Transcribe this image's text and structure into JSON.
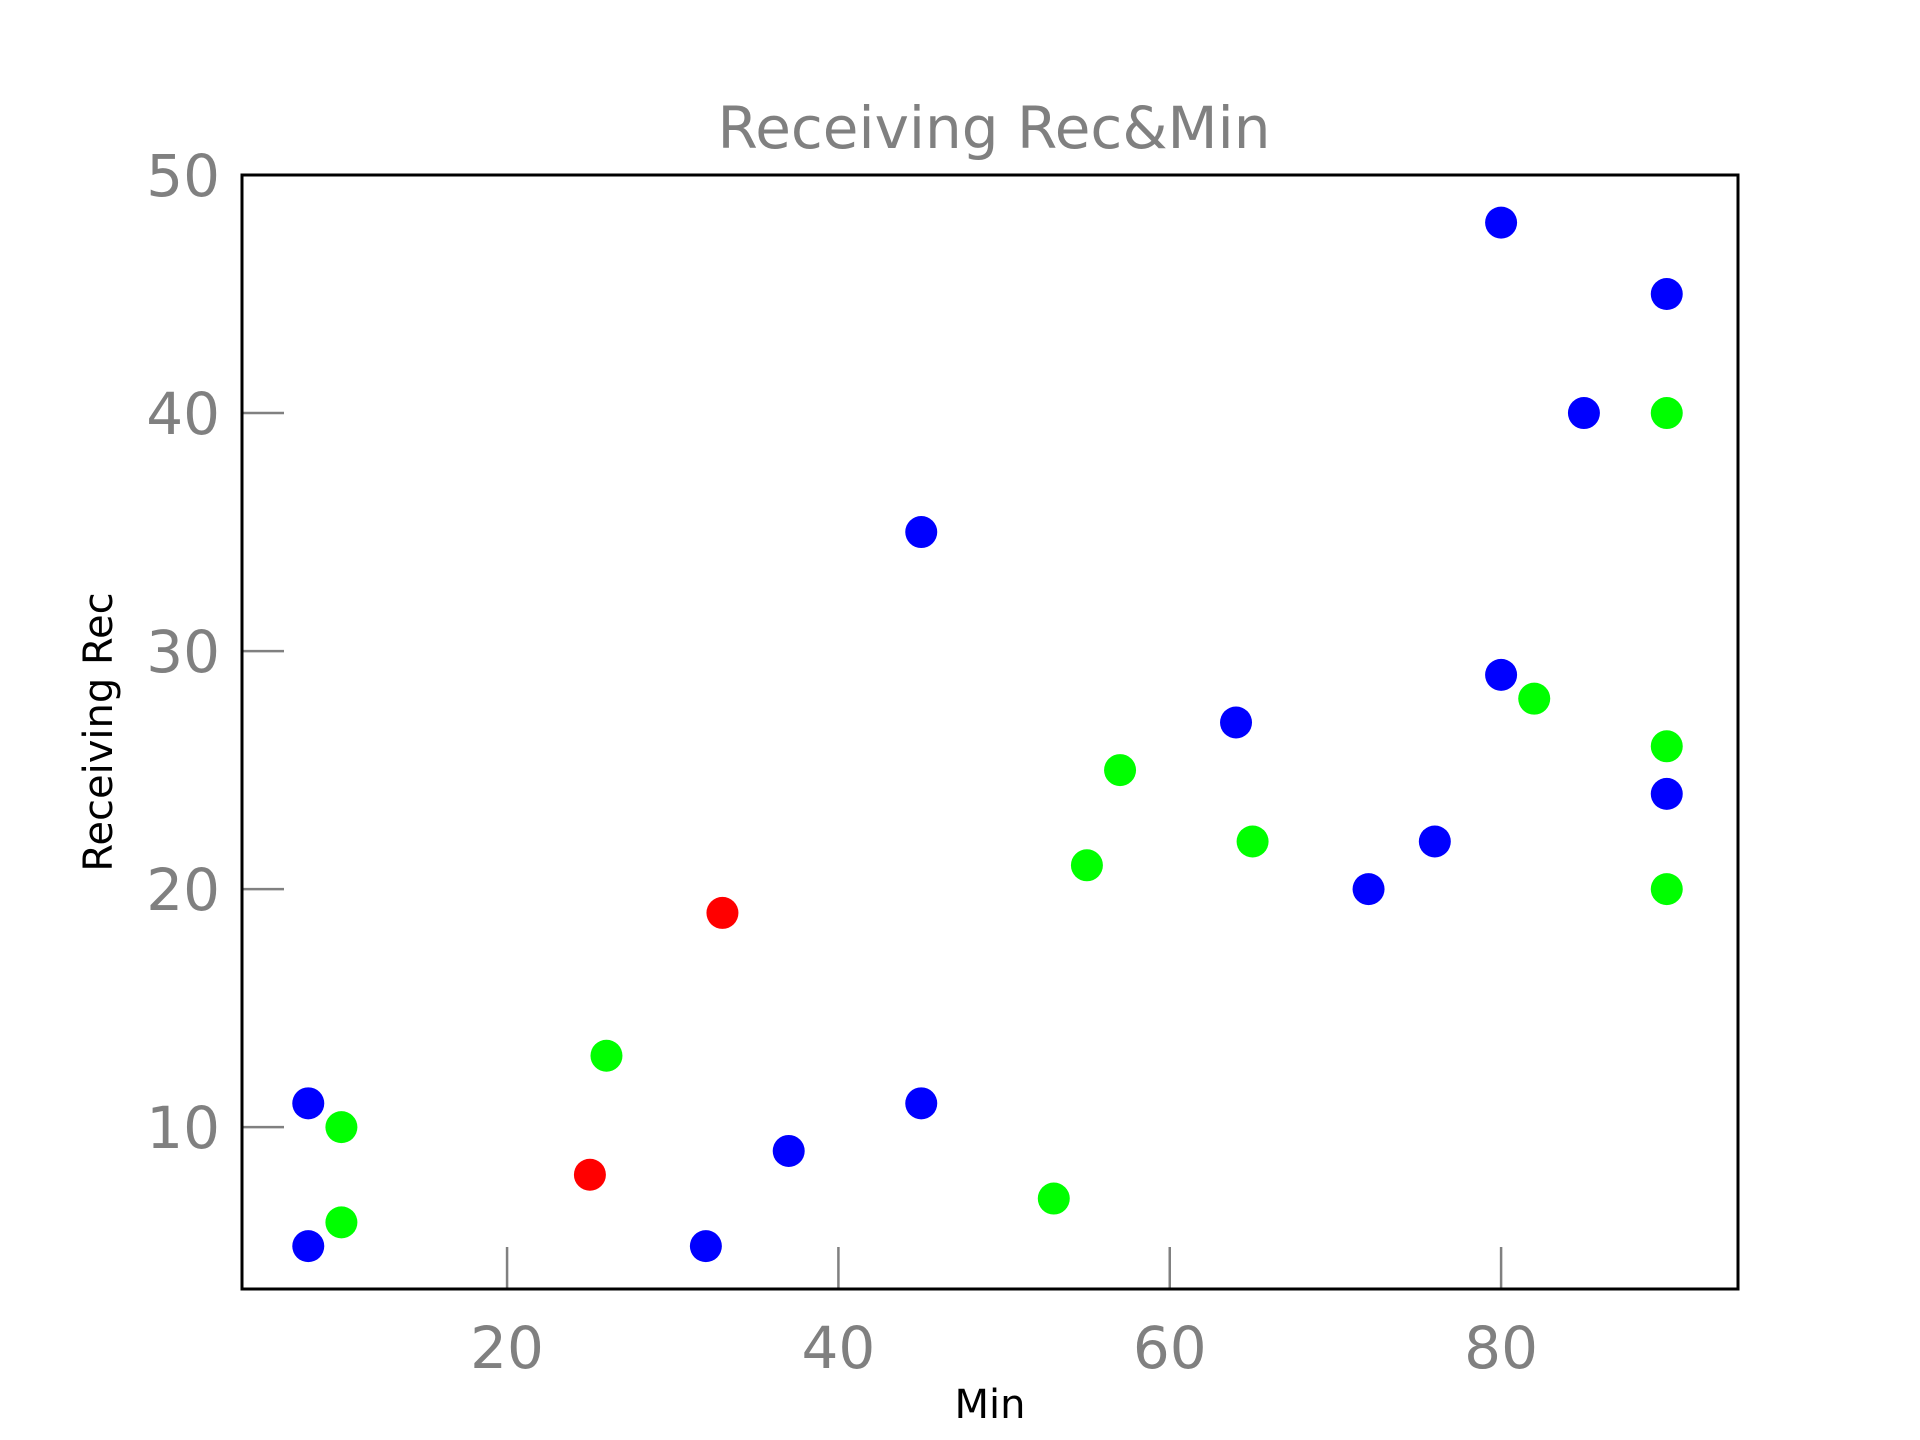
{
  "chart_data": {
    "type": "scatter",
    "title": "Receiving Rec&Min",
    "xlabel": "Min",
    "ylabel": "Receiving Rec",
    "xlim": [
      4,
      94.3
    ],
    "ylim": [
      3.2,
      50
    ],
    "xticks": [
      20,
      40,
      60,
      80
    ],
    "yticks": [
      10,
      20,
      30,
      40,
      50
    ],
    "xtick_labels": [
      "20",
      "40",
      "60",
      "80"
    ],
    "ytick_labels": [
      "10",
      "20",
      "30",
      "40",
      "50"
    ],
    "grid": false,
    "legend": "none",
    "colors": {
      "blue": "#0000ff",
      "green": "#00ff00",
      "red": "#ff0000"
    },
    "points": [
      {
        "x": 8,
        "y": 11,
        "color": "blue"
      },
      {
        "x": 8,
        "y": 5,
        "color": "blue"
      },
      {
        "x": 10,
        "y": 10,
        "color": "green"
      },
      {
        "x": 10,
        "y": 6,
        "color": "green"
      },
      {
        "x": 25,
        "y": 8,
        "color": "red"
      },
      {
        "x": 26,
        "y": 13,
        "color": "green"
      },
      {
        "x": 32,
        "y": 5,
        "color": "blue"
      },
      {
        "x": 33,
        "y": 19,
        "color": "red"
      },
      {
        "x": 37,
        "y": 9,
        "color": "blue"
      },
      {
        "x": 45,
        "y": 35,
        "color": "blue"
      },
      {
        "x": 45,
        "y": 11,
        "color": "blue"
      },
      {
        "x": 53,
        "y": 7,
        "color": "green"
      },
      {
        "x": 55,
        "y": 21,
        "color": "green"
      },
      {
        "x": 57,
        "y": 25,
        "color": "green"
      },
      {
        "x": 64,
        "y": 27,
        "color": "blue"
      },
      {
        "x": 65,
        "y": 22,
        "color": "green"
      },
      {
        "x": 72,
        "y": 20,
        "color": "blue"
      },
      {
        "x": 76,
        "y": 22,
        "color": "blue"
      },
      {
        "x": 80,
        "y": 48,
        "color": "blue"
      },
      {
        "x": 80,
        "y": 29,
        "color": "blue"
      },
      {
        "x": 82,
        "y": 28,
        "color": "green"
      },
      {
        "x": 85,
        "y": 40,
        "color": "blue"
      },
      {
        "x": 90,
        "y": 45,
        "color": "blue"
      },
      {
        "x": 90,
        "y": 40,
        "color": "green"
      },
      {
        "x": 90,
        "y": 26,
        "color": "green"
      },
      {
        "x": 90,
        "y": 24,
        "color": "blue"
      },
      {
        "x": 90,
        "y": 20,
        "color": "green"
      }
    ]
  }
}
